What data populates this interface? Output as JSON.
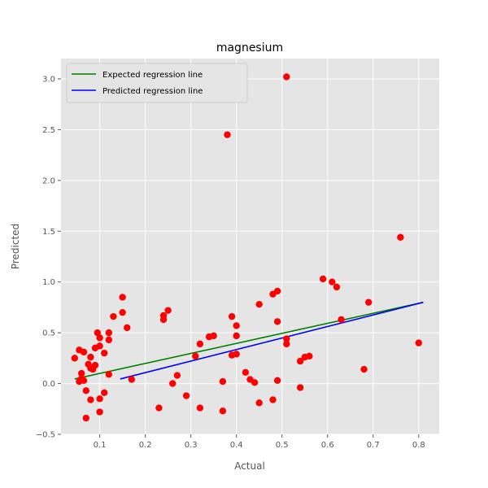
{
  "chart_data": {
    "type": "scatter",
    "title": "magnesium",
    "xlabel": "Actual",
    "ylabel": "Predicted",
    "xlim": [
      0.015,
      0.845
    ],
    "ylim": [
      -0.5,
      3.2
    ],
    "xticks": [
      0.1,
      0.2,
      0.3,
      0.4,
      0.5,
      0.6,
      0.7,
      0.8
    ],
    "xtick_labels": [
      "0.1",
      "0.2",
      "0.3",
      "0.4",
      "0.5",
      "0.6",
      "0.7",
      "0.8"
    ],
    "yticks": [
      -0.5,
      0.0,
      0.5,
      1.0,
      1.5,
      2.0,
      2.5,
      3.0
    ],
    "ytick_labels": [
      "−0.5",
      "0.0",
      "0.5",
      "1.0",
      "1.5",
      "2.0",
      "2.5",
      "3.0"
    ],
    "grid": true,
    "legend_position": "top-left",
    "points": {
      "color": "#ff0000",
      "x": [
        0.045,
        0.055,
        0.055,
        0.06,
        0.06,
        0.065,
        0.065,
        0.07,
        0.07,
        0.075,
        0.08,
        0.08,
        0.08,
        0.085,
        0.09,
        0.09,
        0.095,
        0.1,
        0.1,
        0.1,
        0.1,
        0.11,
        0.11,
        0.12,
        0.12,
        0.12,
        0.13,
        0.15,
        0.15,
        0.16,
        0.17,
        0.23,
        0.24,
        0.24,
        0.25,
        0.26,
        0.27,
        0.29,
        0.31,
        0.32,
        0.32,
        0.34,
        0.35,
        0.37,
        0.37,
        0.38,
        0.39,
        0.39,
        0.4,
        0.4,
        0.4,
        0.42,
        0.43,
        0.44,
        0.45,
        0.45,
        0.48,
        0.48,
        0.49,
        0.49,
        0.49,
        0.51,
        0.51,
        0.51,
        0.54,
        0.54,
        0.55,
        0.56,
        0.59,
        0.61,
        0.62,
        0.63,
        0.68,
        0.69,
        0.76,
        0.8
      ],
      "y": [
        0.25,
        0.33,
        0.02,
        0.1,
        0.05,
        0.31,
        0.03,
        -0.07,
        -0.34,
        0.19,
        0.26,
        0.15,
        -0.16,
        0.14,
        0.35,
        0.18,
        0.5,
        0.45,
        0.37,
        -0.15,
        -0.28,
        0.3,
        -0.09,
        0.5,
        0.43,
        0.09,
        0.66,
        0.85,
        0.7,
        0.55,
        0.04,
        -0.24,
        0.67,
        0.63,
        0.72,
        0.0,
        0.08,
        -0.12,
        0.27,
        0.39,
        -0.24,
        0.46,
        0.47,
        0.02,
        -0.27,
        2.45,
        0.66,
        0.28,
        0.57,
        0.47,
        0.29,
        0.11,
        0.04,
        0.01,
        0.78,
        -0.19,
        0.88,
        -0.16,
        0.91,
        0.61,
        0.03,
        3.02,
        0.44,
        0.39,
        0.22,
        -0.04,
        0.26,
        0.27,
        1.03,
        1.0,
        0.95,
        0.63,
        0.14,
        0.8,
        1.44,
        0.4
      ]
    },
    "lines": [
      {
        "name": "Expected regression line",
        "color": "#008000",
        "x": [
          0.045,
          0.81
        ],
        "y": [
          0.045,
          0.8
        ]
      },
      {
        "name": "Predicted regression line",
        "color": "#0000ff",
        "x": [
          0.145,
          0.81
        ],
        "y": [
          0.045,
          0.8
        ]
      }
    ]
  }
}
